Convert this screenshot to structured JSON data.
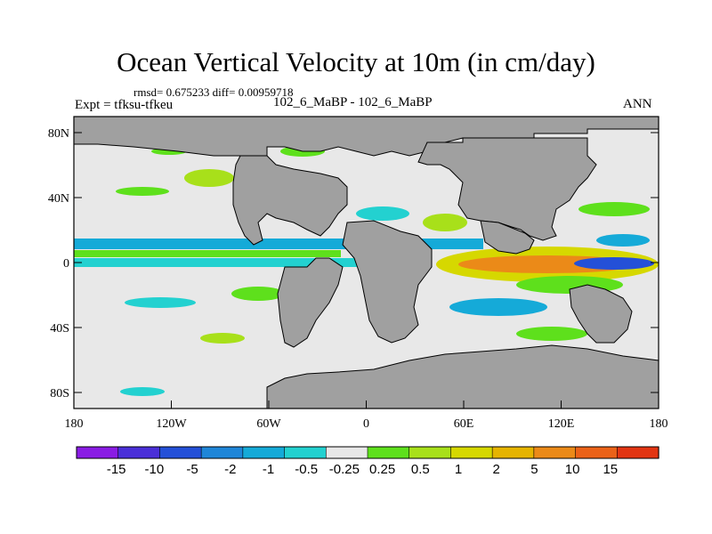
{
  "figure": {
    "title": "Ocean Vertical Velocity at 10m (in cm/day)",
    "stats": "rmsd= 0.675233 diff= 0.00959718",
    "experiment": "Expt = tfksu-tfkeu",
    "case": "102_6_MaBP - 102_6_MaBP",
    "season": "ANN"
  },
  "axes": {
    "x_ticks": [
      "180",
      "120W",
      "60W",
      "0",
      "60E",
      "120E",
      "180"
    ],
    "y_ticks": [
      "80N",
      "40N",
      "0",
      "40S",
      "80S"
    ],
    "lon_range": [
      -180,
      180
    ],
    "lat_range": [
      -90,
      90
    ]
  },
  "colorbar": {
    "labels": [
      "-15",
      "-10",
      "-5",
      "-2",
      "-1",
      "-0.5",
      "-0.25",
      "0.25",
      "0.5",
      "1",
      "2",
      "5",
      "10",
      "15"
    ],
    "colors": [
      "#8a1ce4",
      "#4a2fd8",
      "#2450d8",
      "#1f86d8",
      "#15aad8",
      "#23d1d0",
      "#e8e8e8",
      "#5ee01c",
      "#a8e01a",
      "#d6d800",
      "#e6b400",
      "#eb8a18",
      "#eb6218",
      "#e23512"
    ]
  },
  "colors": {
    "land": "#a0a0a0",
    "ocean_neutral": "#e8e8e8"
  }
}
